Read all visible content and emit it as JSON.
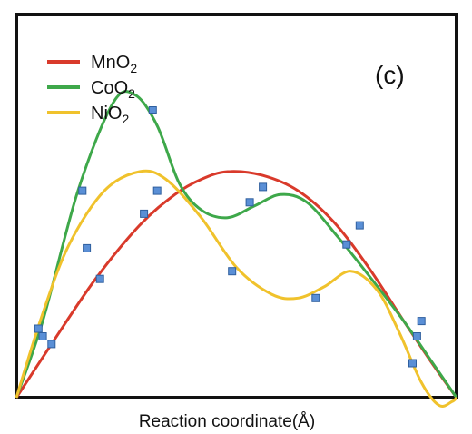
{
  "chart_data": {
    "type": "line",
    "panel_label": "(c)",
    "xlabel": "Reaction coordinate(Å)",
    "ylabel": "",
    "grid": false,
    "legend_position": "top-left",
    "series": [
      {
        "name": "MnO",
        "name_subscript": "2",
        "color": "#d93a2b",
        "curve": [
          [
            0,
            0
          ],
          [
            0.08,
            0.14
          ],
          [
            0.18,
            0.31
          ],
          [
            0.28,
            0.45
          ],
          [
            0.36,
            0.53
          ],
          [
            0.42,
            0.57
          ],
          [
            0.48,
            0.59
          ],
          [
            0.56,
            0.58
          ],
          [
            0.64,
            0.54
          ],
          [
            0.72,
            0.46
          ],
          [
            0.8,
            0.34
          ],
          [
            0.88,
            0.2
          ],
          [
            0.95,
            0.08
          ],
          [
            1,
            0
          ]
        ],
        "markers": [
          [
            0.08,
            0.14
          ],
          [
            0.19,
            0.31
          ],
          [
            0.29,
            0.48
          ],
          [
            0.56,
            0.55
          ],
          [
            0.75,
            0.4
          ],
          [
            0.91,
            0.16
          ]
        ]
      },
      {
        "name": "CoO",
        "name_subscript": "2",
        "color": "#3ea84a",
        "curve": [
          [
            0,
            0
          ],
          [
            0.06,
            0.2
          ],
          [
            0.14,
            0.54
          ],
          [
            0.22,
            0.77
          ],
          [
            0.27,
            0.79
          ],
          [
            0.32,
            0.71
          ],
          [
            0.37,
            0.56
          ],
          [
            0.42,
            0.49
          ],
          [
            0.48,
            0.47
          ],
          [
            0.54,
            0.5
          ],
          [
            0.6,
            0.53
          ],
          [
            0.66,
            0.51
          ],
          [
            0.73,
            0.42
          ],
          [
            0.8,
            0.32
          ],
          [
            0.88,
            0.2
          ],
          [
            0.94,
            0.1
          ],
          [
            1,
            0
          ]
        ],
        "markers": [
          [
            0.05,
            0.18
          ],
          [
            0.15,
            0.54
          ],
          [
            0.31,
            0.75
          ],
          [
            0.53,
            0.51
          ],
          [
            0.78,
            0.45
          ],
          [
            0.92,
            0.2
          ]
        ]
      },
      {
        "name": "NiO",
        "name_subscript": "2",
        "color": "#f0c22c",
        "curve": [
          [
            0,
            0
          ],
          [
            0.06,
            0.22
          ],
          [
            0.12,
            0.4
          ],
          [
            0.2,
            0.54
          ],
          [
            0.28,
            0.59
          ],
          [
            0.34,
            0.57
          ],
          [
            0.42,
            0.47
          ],
          [
            0.5,
            0.34
          ],
          [
            0.58,
            0.27
          ],
          [
            0.64,
            0.26
          ],
          [
            0.7,
            0.29
          ],
          [
            0.76,
            0.33
          ],
          [
            0.82,
            0.28
          ],
          [
            0.87,
            0.17
          ],
          [
            0.92,
            0.04
          ],
          [
            0.96,
            -0.02
          ],
          [
            0.99,
            -0.01
          ],
          [
            1,
            0
          ]
        ],
        "markers": [
          [
            0.06,
            0.16
          ],
          [
            0.16,
            0.39
          ],
          [
            0.32,
            0.54
          ],
          [
            0.49,
            0.33
          ],
          [
            0.68,
            0.26
          ],
          [
            0.9,
            0.09
          ]
        ]
      }
    ]
  }
}
